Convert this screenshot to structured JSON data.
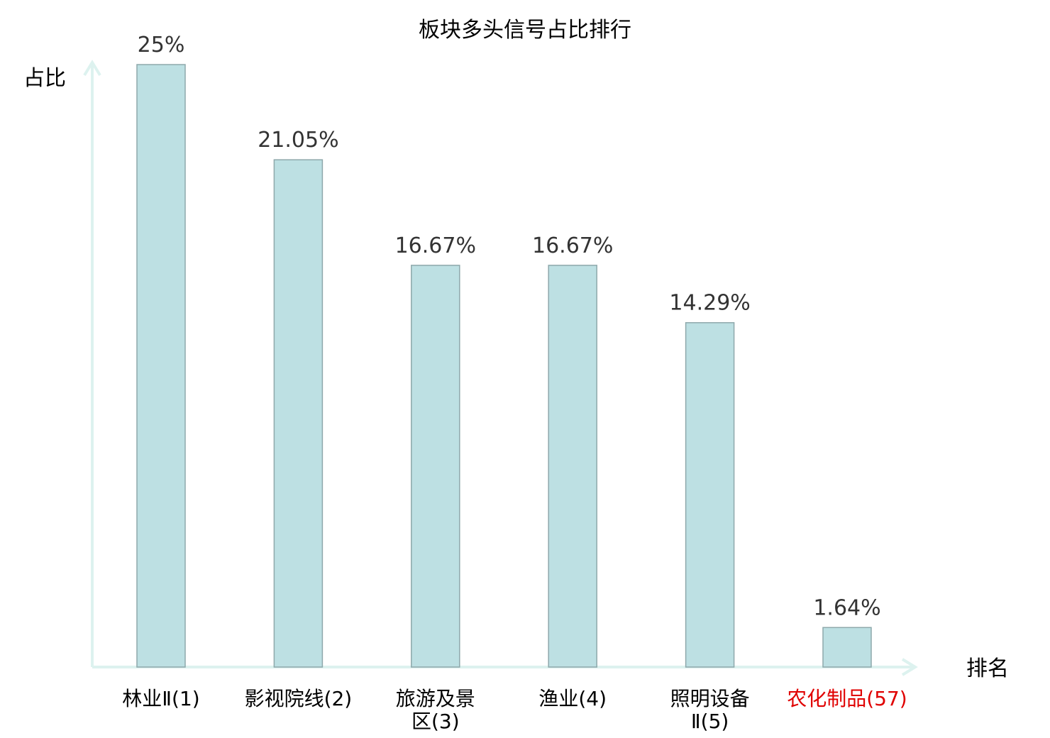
{
  "chart_data": {
    "type": "bar",
    "title": "板块多头信号占比排行",
    "ylabel": "占比",
    "xlabel": "排名",
    "ylim": [
      0,
      25
    ],
    "categories": [
      {
        "lines": [
          "林业Ⅱ(1)"
        ],
        "highlight": false
      },
      {
        "lines": [
          "影视院线(2)"
        ],
        "highlight": false
      },
      {
        "lines": [
          "旅游及景",
          "区(3)"
        ],
        "highlight": false
      },
      {
        "lines": [
          "渔业(4)"
        ],
        "highlight": false
      },
      {
        "lines": [
          "照明设备",
          "Ⅱ(5)"
        ],
        "highlight": false
      },
      {
        "lines": [
          "农化制品(57)"
        ],
        "highlight": true
      }
    ],
    "values": [
      25,
      21.05,
      16.67,
      16.67,
      14.29,
      1.64
    ],
    "value_labels": [
      "25%",
      "21.05%",
      "16.67%",
      "16.67%",
      "14.29%",
      "1.64%"
    ],
    "colors": {
      "bar_fill": "#bde0e3",
      "bar_stroke": "#8ea8ab",
      "axis": "#ddf2ef",
      "highlight": "#e00000",
      "text": "#000000"
    }
  }
}
